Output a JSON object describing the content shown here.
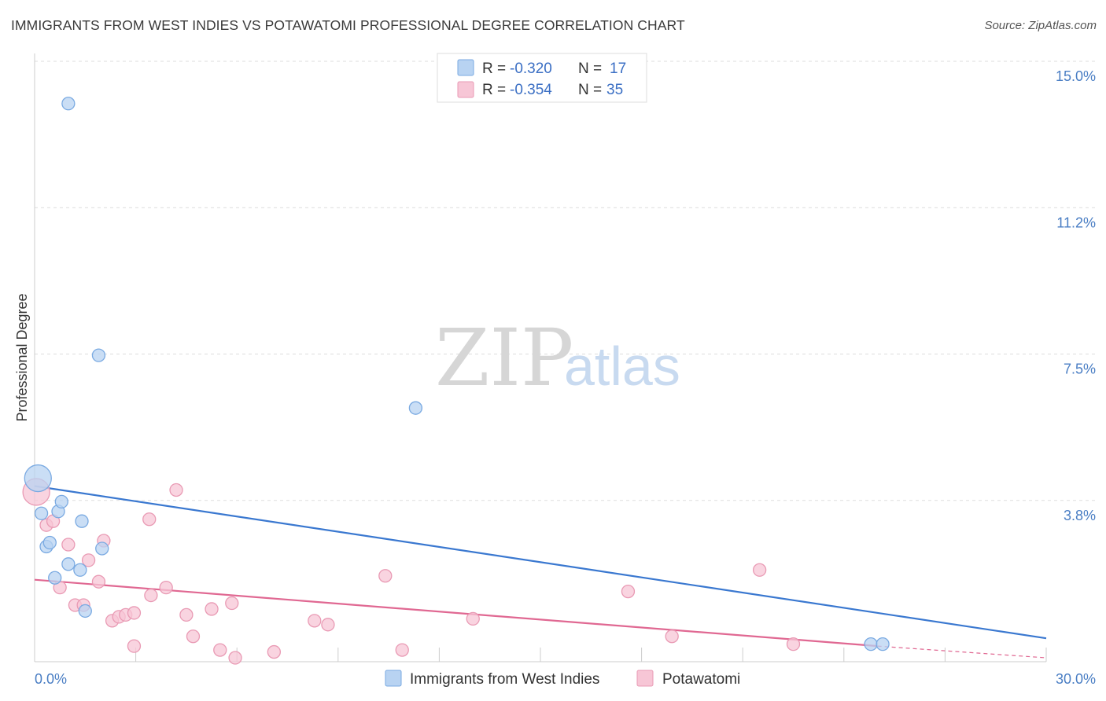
{
  "header": {
    "title": "IMMIGRANTS FROM WEST INDIES VS POTAWATOMI PROFESSIONAL DEGREE CORRELATION CHART",
    "source": "Source: ZipAtlas.com"
  },
  "watermark": {
    "zip": "ZIP",
    "atlas": "atlas"
  },
  "legend": {
    "r_label": "R =",
    "n_label": "N =",
    "entries": [
      {
        "r_value": "-0.320",
        "n_value": "17"
      },
      {
        "r_value": "-0.354",
        "n_value": "35"
      }
    ]
  },
  "colors": {
    "blue_fill": "#b8d3f2",
    "blue_stroke": "#7aaae2",
    "blue_line": "#3a78d0",
    "pink_fill": "#f7c6d6",
    "pink_stroke": "#e99ab4",
    "pink_line": "#e06892",
    "grid": "#dddddd",
    "axis_label": "#4a7ec4"
  },
  "chart_data": {
    "type": "scatter",
    "title": "IMMIGRANTS FROM WEST INDIES VS POTAWATOMI PROFESSIONAL DEGREE CORRELATION CHART",
    "xlabel": "",
    "ylabel": "Professional Degree",
    "xlim": [
      0,
      30
    ],
    "ylim": [
      0,
      15.5
    ],
    "x_tick_labels": [
      "0.0%",
      "30.0%"
    ],
    "y_ticks": [
      {
        "value": 15.0,
        "label": "15.0%"
      },
      {
        "value": 11.25,
        "label": "11.2%"
      },
      {
        "value": 7.5,
        "label": "7.5%"
      },
      {
        "value": 3.75,
        "label": "3.8%"
      }
    ],
    "grid": true,
    "legend_position": "top-center",
    "series": [
      {
        "name": "Immigrants from West Indies",
        "r": -0.32,
        "n": 17,
        "trend": {
          "x": [
            0,
            30
          ],
          "y": [
            4.5,
            0.6
          ]
        },
        "points": [
          {
            "x": 0.1,
            "y": 4.7,
            "big": true
          },
          {
            "x": 0.2,
            "y": 3.8
          },
          {
            "x": 0.35,
            "y": 2.95
          },
          {
            "x": 0.45,
            "y": 3.05
          },
          {
            "x": 0.6,
            "y": 2.15
          },
          {
            "x": 0.7,
            "y": 3.85
          },
          {
            "x": 0.8,
            "y": 4.1
          },
          {
            "x": 1.0,
            "y": 14.3
          },
          {
            "x": 1.0,
            "y": 2.5
          },
          {
            "x": 1.35,
            "y": 2.35
          },
          {
            "x": 1.4,
            "y": 3.6
          },
          {
            "x": 1.5,
            "y": 1.3
          },
          {
            "x": 1.9,
            "y": 7.85
          },
          {
            "x": 2.0,
            "y": 2.9
          },
          {
            "x": 11.3,
            "y": 6.5
          },
          {
            "x": 24.8,
            "y": 0.45
          },
          {
            "x": 25.15,
            "y": 0.45
          }
        ]
      },
      {
        "name": "Potawatomi",
        "r": -0.354,
        "n": 35,
        "trend": {
          "x": [
            0,
            25.0
          ],
          "y": [
            2.1,
            0.4
          ]
        },
        "trend_dashed": {
          "x": [
            25.0,
            30
          ],
          "y": [
            0.4,
            0.1
          ]
        },
        "points": [
          {
            "x": 0.05,
            "y": 4.35,
            "big": true
          },
          {
            "x": 0.35,
            "y": 3.5
          },
          {
            "x": 0.55,
            "y": 3.6
          },
          {
            "x": 0.75,
            "y": 1.9
          },
          {
            "x": 1.0,
            "y": 3.0
          },
          {
            "x": 1.2,
            "y": 1.45
          },
          {
            "x": 1.45,
            "y": 1.45
          },
          {
            "x": 1.6,
            "y": 2.6
          },
          {
            "x": 1.9,
            "y": 2.05
          },
          {
            "x": 2.05,
            "y": 3.1
          },
          {
            "x": 2.3,
            "y": 1.05
          },
          {
            "x": 2.5,
            "y": 1.15
          },
          {
            "x": 2.7,
            "y": 1.2
          },
          {
            "x": 2.95,
            "y": 1.25
          },
          {
            "x": 2.95,
            "y": 0.4
          },
          {
            "x": 3.45,
            "y": 1.7
          },
          {
            "x": 3.4,
            "y": 3.65
          },
          {
            "x": 3.9,
            "y": 1.9
          },
          {
            "x": 4.2,
            "y": 4.4
          },
          {
            "x": 4.5,
            "y": 1.2
          },
          {
            "x": 4.7,
            "y": 0.65
          },
          {
            "x": 5.25,
            "y": 1.35
          },
          {
            "x": 5.5,
            "y": 0.3
          },
          {
            "x": 5.85,
            "y": 1.5
          },
          {
            "x": 5.95,
            "y": 0.1
          },
          {
            "x": 7.1,
            "y": 0.25
          },
          {
            "x": 8.3,
            "y": 1.05
          },
          {
            "x": 8.7,
            "y": 0.95
          },
          {
            "x": 10.4,
            "y": 2.2
          },
          {
            "x": 10.9,
            "y": 0.3
          },
          {
            "x": 13.0,
            "y": 1.1
          },
          {
            "x": 17.6,
            "y": 1.8
          },
          {
            "x": 18.9,
            "y": 0.65
          },
          {
            "x": 21.5,
            "y": 2.35
          },
          {
            "x": 22.5,
            "y": 0.45
          }
        ]
      }
    ]
  }
}
